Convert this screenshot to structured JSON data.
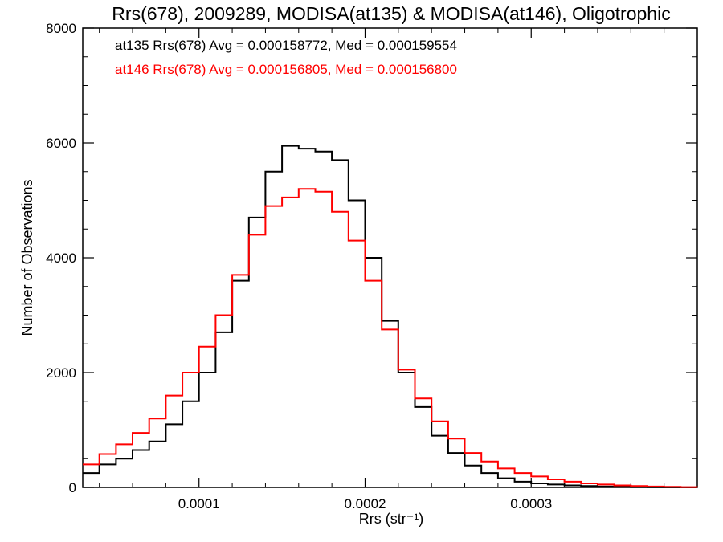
{
  "chart_data": {
    "type": "line",
    "step": true,
    "title": "Rrs(678), 2009289, MODISA(at135) & MODISA(at146), Oligotrophic",
    "xlabel": "Rrs (str⁻¹)",
    "ylabel": "Number of Observations",
    "xlim": [
      3e-05,
      0.0004
    ],
    "ylim": [
      0,
      8000
    ],
    "x_ticks": [
      {
        "value": 0.0001,
        "label": "0.0001"
      },
      {
        "value": 0.0002,
        "label": "0.0002"
      },
      {
        "value": 0.0003,
        "label": "0.0003"
      }
    ],
    "y_ticks": [
      {
        "value": 0,
        "label": "0"
      },
      {
        "value": 2000,
        "label": "2000"
      },
      {
        "value": 4000,
        "label": "4000"
      },
      {
        "value": 6000,
        "label": "6000"
      },
      {
        "value": 8000,
        "label": "8000"
      }
    ],
    "legend": [
      {
        "text": "at135 Rrs(678) Avg = 0.000158772, Med = 0.000159554",
        "color": "#000000"
      },
      {
        "text": "at146 Rrs(678) Avg = 0.000156805, Med = 0.000156800",
        "color": "#ff0000"
      }
    ],
    "legend_position": "top-left",
    "series": [
      {
        "color": "#000000",
        "x": [
          3e-05,
          4e-05,
          5e-05,
          6e-05,
          7e-05,
          8e-05,
          9e-05,
          0.0001,
          0.00011,
          0.00012,
          0.00013,
          0.00014,
          0.00015,
          0.00016,
          0.00017,
          0.00018,
          0.00019,
          0.0002,
          0.00021,
          0.00022,
          0.00023,
          0.00024,
          0.00025,
          0.00026,
          0.00027,
          0.00028,
          0.00029,
          0.0003,
          0.00031,
          0.00032,
          0.00033,
          0.00034,
          0.00035,
          0.00036,
          0.00037,
          0.00038,
          0.00039,
          0.0004
        ],
        "y": [
          250,
          400,
          500,
          650,
          800,
          1100,
          1500,
          2000,
          2700,
          3600,
          4700,
          5500,
          5950,
          5900,
          5850,
          5700,
          5000,
          4000,
          2900,
          2000,
          1400,
          900,
          600,
          380,
          250,
          160,
          100,
          70,
          50,
          35,
          25,
          15,
          10,
          5,
          3,
          2,
          1,
          0
        ]
      },
      {
        "color": "#ff0000",
        "x": [
          3e-05,
          4e-05,
          5e-05,
          6e-05,
          7e-05,
          8e-05,
          9e-05,
          0.0001,
          0.00011,
          0.00012,
          0.00013,
          0.00014,
          0.00015,
          0.00016,
          0.00017,
          0.00018,
          0.00019,
          0.0002,
          0.00021,
          0.00022,
          0.00023,
          0.00024,
          0.00025,
          0.00026,
          0.00027,
          0.00028,
          0.00029,
          0.0003,
          0.00031,
          0.00032,
          0.00033,
          0.00034,
          0.00035,
          0.00036,
          0.00037,
          0.00038,
          0.00039,
          0.0004
        ],
        "y": [
          400,
          580,
          750,
          950,
          1200,
          1600,
          2000,
          2450,
          3000,
          3700,
          4400,
          4900,
          5050,
          5200,
          5150,
          4800,
          4300,
          3600,
          2750,
          2050,
          1550,
          1150,
          850,
          600,
          450,
          330,
          250,
          190,
          140,
          100,
          70,
          50,
          35,
          25,
          15,
          10,
          5,
          2
        ]
      }
    ]
  }
}
